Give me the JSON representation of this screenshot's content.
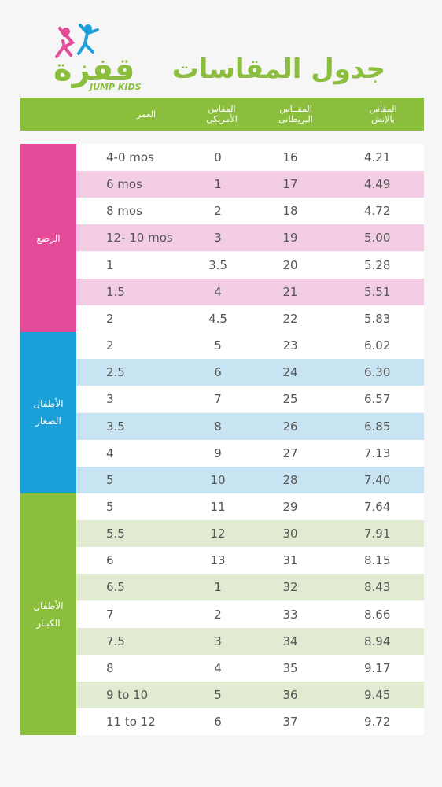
{
  "logo": {
    "arabic": "قفزة",
    "english": "JUMP KIDS",
    "pink": "#e44c9a",
    "blue": "#1e9fd9",
    "green": "#8cbe3e"
  },
  "title": "جدول المقاسات",
  "header": {
    "age": "العمر",
    "us": "المقاس\nالأمريكي",
    "uk": "المقــاس\nالبريطاني",
    "inch": "المقاس\nبالإنش"
  },
  "colors": {
    "pink": "#e44c9a",
    "pink_light": "#f2cde3",
    "blue": "#1aa0d8",
    "blue_light": "#c8e4f2",
    "green": "#8cbe3e",
    "green_light": "#e1ebd2",
    "white": "#ffffff"
  },
  "groups": [
    {
      "label": "الرضع",
      "color": "pink",
      "light": "pink_light",
      "rows": [
        {
          "age": "4-0 mos",
          "us": "0",
          "uk": "16",
          "inch": "4.21"
        },
        {
          "age": "6 mos",
          "us": "1",
          "uk": "17",
          "inch": "4.49"
        },
        {
          "age": "8 mos",
          "us": "2",
          "uk": "18",
          "inch": "4.72"
        },
        {
          "age": "12- 10 mos",
          "us": "3",
          "uk": "19",
          "inch": "5.00"
        },
        {
          "age": "1",
          "us": "3.5",
          "uk": "20",
          "inch": "5.28"
        },
        {
          "age": "1.5",
          "us": "4",
          "uk": "21",
          "inch": "5.51"
        },
        {
          "age": "2",
          "us": "4.5",
          "uk": "22",
          "inch": "5.83"
        }
      ]
    },
    {
      "label": "الأطفال\nالصغار",
      "color": "blue",
      "light": "blue_light",
      "rows": [
        {
          "age": "2",
          "us": "5",
          "uk": "23",
          "inch": "6.02"
        },
        {
          "age": "2.5",
          "us": "6",
          "uk": "24",
          "inch": "6.30"
        },
        {
          "age": "3",
          "us": "7",
          "uk": "25",
          "inch": "6.57"
        },
        {
          "age": "3.5",
          "us": "8",
          "uk": "26",
          "inch": "6.85"
        },
        {
          "age": "4",
          "us": "9",
          "uk": "27",
          "inch": "7.13"
        },
        {
          "age": "5",
          "us": "10",
          "uk": "28",
          "inch": "7.40"
        }
      ]
    },
    {
      "label": "الأطفال\nالكبـار",
      "color": "green",
      "light": "green_light",
      "rows": [
        {
          "age": "5",
          "us": "11",
          "uk": "29",
          "inch": "7.64"
        },
        {
          "age": "5.5",
          "us": "12",
          "uk": "30",
          "inch": "7.91"
        },
        {
          "age": "6",
          "us": "13",
          "uk": "31",
          "inch": "8.15"
        },
        {
          "age": "6.5",
          "us": "1",
          "uk": "32",
          "inch": "8.43"
        },
        {
          "age": "7",
          "us": "2",
          "uk": "33",
          "inch": "8.66"
        },
        {
          "age": "7.5",
          "us": "3",
          "uk": "34",
          "inch": "8.94"
        },
        {
          "age": "8",
          "us": "4",
          "uk": "35",
          "inch": "9.17"
        },
        {
          "age": "9 to 10",
          "us": "5",
          "uk": "36",
          "inch": "9.45"
        },
        {
          "age": "11 to 12",
          "us": "6",
          "uk": "37",
          "inch": "9.72"
        }
      ]
    }
  ]
}
